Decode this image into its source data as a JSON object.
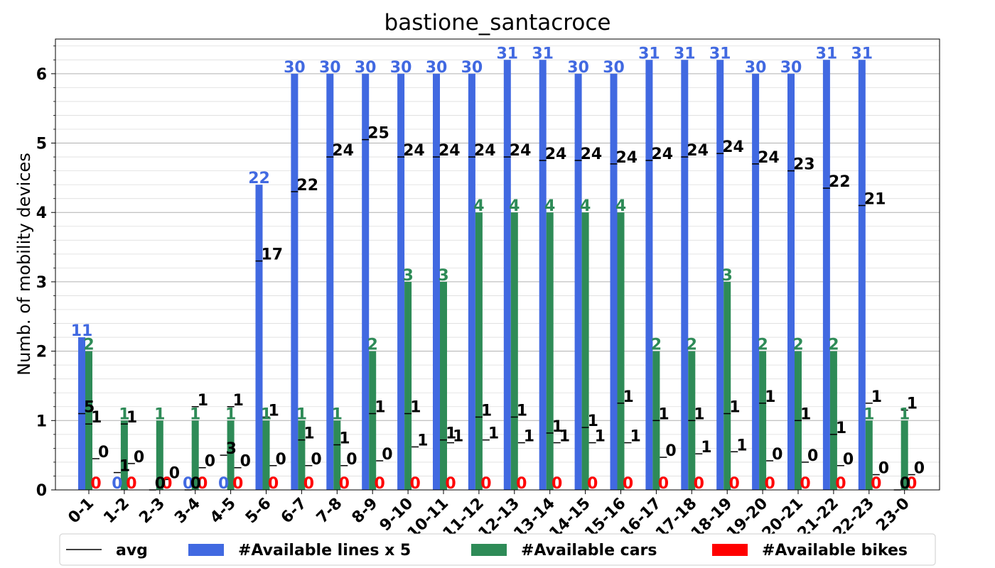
{
  "chart_data": {
    "type": "bar",
    "title": "bastione_santacroce",
    "xlabel": "",
    "ylabel": "Numb. of mobility devices",
    "ylim": [
      0,
      6.5
    ],
    "yticks": [
      "0",
      "1",
      "2",
      "3",
      "4",
      "5",
      "6"
    ],
    "grid": true,
    "legend_position": "bottom",
    "categories": [
      "0-1",
      "1-2",
      "2-3",
      "3-4",
      "4-5",
      "5-6",
      "6-7",
      "7-8",
      "8-9",
      "9-10",
      "10-11",
      "11-12",
      "12-13",
      "13-14",
      "14-15",
      "15-16",
      "16-17",
      "17-18",
      "18-19",
      "19-20",
      "20-21",
      "21-22",
      "22-23",
      "23-0"
    ],
    "series": [
      {
        "name": "#Available lines x 5",
        "color": "#4169e1",
        "values": [
          2.2,
          0,
          0,
          0,
          0,
          4.4,
          6,
          6,
          6,
          6,
          6,
          6,
          6.2,
          6.2,
          6,
          6,
          6.2,
          6.2,
          6.2,
          6,
          6,
          6.2,
          6.2,
          0
        ],
        "labels": [
          "11",
          "0",
          "",
          "0",
          "0",
          "22",
          "30",
          "30",
          "30",
          "30",
          "30",
          "30",
          "31",
          "31",
          "30",
          "30",
          "31",
          "31",
          "31",
          "30",
          "30",
          "31",
          "31",
          ""
        ]
      },
      {
        "name": "#Available cars",
        "color": "#2e8b57",
        "values": [
          2,
          1,
          1,
          1,
          1,
          1,
          1,
          1,
          2,
          3,
          3,
          4,
          4,
          4,
          4,
          4,
          2,
          2,
          3,
          2,
          2,
          2,
          1,
          1
        ],
        "labels": [
          "2",
          "1",
          "1",
          "1",
          "1",
          "1",
          "1",
          "1",
          "2",
          "3",
          "3",
          "4",
          "4",
          "4",
          "4",
          "4",
          "2",
          "2",
          "3",
          "2",
          "2",
          "2",
          "1",
          "1"
        ]
      },
      {
        "name": "#Available bikes",
        "color": "#ff0000",
        "values": [
          0,
          0,
          0,
          0,
          0,
          0,
          0,
          0,
          0,
          0,
          0,
          0,
          0,
          0,
          0,
          0,
          0,
          0,
          0,
          0,
          0,
          0,
          0,
          0
        ],
        "labels": [
          "0",
          "0",
          "0",
          "0",
          "0",
          "0",
          "0",
          "0",
          "0",
          "0",
          "0",
          "0",
          "0",
          "0",
          "0",
          "0",
          "0",
          "0",
          "0",
          "0",
          "0",
          "0",
          "0",
          "0"
        ]
      }
    ],
    "avg": {
      "name": "avg",
      "color": "#000000",
      "lines": [
        1.1,
        0.25,
        0,
        0,
        0.5,
        3.3,
        4.3,
        4.8,
        5.05,
        4.8,
        4.8,
        4.8,
        4.8,
        4.75,
        4.75,
        4.7,
        4.75,
        4.8,
        4.85,
        4.7,
        4.6,
        4.35,
        4.1,
        0
      ],
      "line_labels": [
        "5",
        "1",
        "0",
        "0",
        "3",
        "17",
        "22",
        "24",
        "25",
        "24",
        "24",
        "24",
        "24",
        "24",
        "24",
        "24",
        "24",
        "24",
        "24",
        "24",
        "23",
        "22",
        "21",
        "0"
      ],
      "cars": [
        0.95,
        0.95,
        0,
        1.2,
        1.2,
        1.05,
        0.72,
        0.65,
        1.1,
        1.1,
        0.72,
        1.05,
        1.05,
        0.82,
        0.9,
        1.25,
        1.0,
        1.0,
        1.1,
        1.25,
        1.0,
        0.8,
        1.25,
        1.15
      ],
      "car_labels": [
        "1",
        "1",
        "",
        "1",
        "1",
        "1",
        "1",
        "1",
        "1",
        "1",
        "1",
        "1",
        "1",
        "1",
        "1",
        "1",
        "1",
        "1",
        "1",
        "1",
        "1",
        "1",
        "1",
        "1"
      ],
      "bikes": [
        0.45,
        0.38,
        0.15,
        0.32,
        0.32,
        0.35,
        0.35,
        0.35,
        0.42,
        0.62,
        0.68,
        0.72,
        0.68,
        0.68,
        0.68,
        0.68,
        0.47,
        0.52,
        0.55,
        0.42,
        0.4,
        0.35,
        0.22,
        0.22
      ],
      "bike_labels": [
        "0",
        "0",
        "0",
        "0",
        "0",
        "0",
        "0",
        "0",
        "0",
        "1",
        "1",
        "1",
        "1",
        "1",
        "1",
        "1",
        "0",
        "1",
        "1",
        "0",
        "0",
        "0",
        "0",
        "0"
      ]
    }
  }
}
